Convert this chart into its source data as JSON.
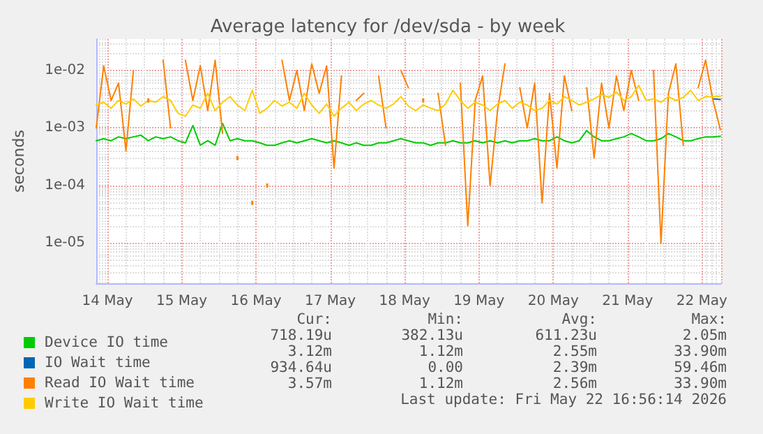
{
  "chart_data": {
    "type": "line",
    "title": "Average latency for /dev/sda - by week",
    "ylabel": "seconds",
    "x": [
      "2026-05-13T20:24",
      "2026-05-13T22:48",
      "2026-05-14T01:12",
      "2026-05-14T03:36",
      "2026-05-14T06:00",
      "2026-05-14T08:24",
      "2026-05-14T10:48",
      "2026-05-14T13:12",
      "2026-05-14T15:36",
      "2026-05-14T18:00",
      "2026-05-14T20:24",
      "2026-05-14T22:48",
      "2026-05-15T01:12",
      "2026-05-15T03:36",
      "2026-05-15T06:00",
      "2026-05-15T08:24",
      "2026-05-15T10:48",
      "2026-05-15T13:12",
      "2026-05-15T15:36",
      "2026-05-15T18:00",
      "2026-05-15T20:24",
      "2026-05-15T22:48",
      "2026-05-16T01:12",
      "2026-05-16T03:36",
      "2026-05-16T06:00",
      "2026-05-16T08:24",
      "2026-05-16T10:48",
      "2026-05-16T13:12",
      "2026-05-16T15:36",
      "2026-05-16T18:00",
      "2026-05-16T20:24",
      "2026-05-16T22:48",
      "2026-05-17T01:12",
      "2026-05-17T03:36",
      "2026-05-17T06:00",
      "2026-05-17T08:24",
      "2026-05-17T10:48",
      "2026-05-17T13:12",
      "2026-05-17T15:36",
      "2026-05-17T18:00",
      "2026-05-17T20:24",
      "2026-05-17T22:48",
      "2026-05-18T01:12",
      "2026-05-18T03:36",
      "2026-05-18T06:00",
      "2026-05-18T08:24",
      "2026-05-18T10:48",
      "2026-05-18T13:12",
      "2026-05-18T15:36",
      "2026-05-18T18:00",
      "2026-05-18T20:24",
      "2026-05-18T22:48",
      "2026-05-19T01:12",
      "2026-05-19T03:36",
      "2026-05-19T06:00",
      "2026-05-19T08:24",
      "2026-05-19T10:48",
      "2026-05-19T13:12",
      "2026-05-19T15:36",
      "2026-05-19T18:00",
      "2026-05-19T20:24",
      "2026-05-19T22:48",
      "2026-05-20T01:12",
      "2026-05-20T03:36",
      "2026-05-20T06:00",
      "2026-05-20T08:24",
      "2026-05-20T10:48",
      "2026-05-20T13:12",
      "2026-05-20T15:36",
      "2026-05-20T18:00",
      "2026-05-20T20:24",
      "2026-05-20T22:48",
      "2026-05-21T01:12",
      "2026-05-21T03:36",
      "2026-05-21T06:00",
      "2026-05-21T08:24",
      "2026-05-21T10:48",
      "2026-05-21T13:12",
      "2026-05-21T15:36",
      "2026-05-21T18:00",
      "2026-05-21T20:24",
      "2026-05-21T22:48",
      "2026-05-22T01:12",
      "2026-05-22T03:36",
      "2026-05-22T06:00"
    ],
    "series": [
      {
        "name": "Device IO time",
        "color": "#00cc00",
        "values": [
          0.0006,
          0.00065,
          0.0006,
          0.0007,
          0.00065,
          0.0007,
          0.00075,
          0.0006,
          0.0007,
          0.00065,
          0.0007,
          0.0006,
          0.00055,
          0.0011,
          0.0005,
          0.0006,
          0.0005,
          0.0012,
          0.0006,
          0.00065,
          0.0006,
          0.0006,
          0.00055,
          0.0005,
          0.0005,
          0.00055,
          0.0006,
          0.00055,
          0.0006,
          0.00065,
          0.0006,
          0.00055,
          0.0006,
          0.00055,
          0.0005,
          0.00055,
          0.0005,
          0.0005,
          0.00055,
          0.00055,
          0.0006,
          0.00065,
          0.0006,
          0.00055,
          0.00055,
          0.0005,
          0.00055,
          0.00055,
          0.0006,
          0.00055,
          0.00055,
          0.0006,
          0.00055,
          0.0006,
          0.00055,
          0.0006,
          0.00055,
          0.0006,
          0.0006,
          0.00065,
          0.0006,
          0.0006,
          0.0007,
          0.0006,
          0.00055,
          0.0006,
          0.0009,
          0.0007,
          0.0006,
          0.0006,
          0.00065,
          0.0007,
          0.0008,
          0.0007,
          0.0006,
          0.0006,
          0.00065,
          0.0008,
          0.0007,
          0.0006,
          0.0006,
          0.00065,
          0.0007,
          0.0007,
          0.00072
        ]
      },
      {
        "name": "IO Wait time",
        "color": "#0066b3",
        "values": [
          null,
          null,
          null,
          null,
          null,
          null,
          null,
          null,
          null,
          null,
          null,
          null,
          null,
          null,
          null,
          null,
          null,
          null,
          null,
          null,
          null,
          null,
          null,
          null,
          null,
          null,
          null,
          null,
          null,
          null,
          null,
          null,
          null,
          null,
          null,
          null,
          null,
          null,
          null,
          null,
          null,
          null,
          null,
          null,
          null,
          null,
          null,
          null,
          null,
          null,
          null,
          null,
          null,
          null,
          null,
          null,
          null,
          null,
          null,
          null,
          null,
          null,
          null,
          null,
          null,
          null,
          null,
          null,
          null,
          null,
          null,
          null,
          null,
          null,
          null,
          null,
          null,
          null,
          null,
          null,
          null,
          null,
          null,
          0.0032,
          0.00312
        ]
      },
      {
        "name": "Read IO Wait time",
        "color": "#ff8000",
        "values": [
          0.001,
          0.012,
          0.003,
          0.006,
          0.0004,
          0.01,
          null,
          0.003,
          null,
          0.015,
          0.001,
          null,
          0.015,
          0.003,
          0.012,
          0.002,
          0.015,
          0.0008,
          null,
          0.0003,
          null,
          5e-05,
          null,
          0.0001,
          null,
          0.015,
          0.003,
          0.01,
          0.002,
          0.013,
          0.004,
          0.012,
          0.0002,
          0.008,
          null,
          0.003,
          0.004,
          null,
          0.008,
          0.001,
          null,
          0.01,
          0.005,
          null,
          0.003,
          null,
          0.004,
          0.0005,
          null,
          0.006,
          2e-05,
          0.003,
          0.008,
          0.0001,
          0.002,
          0.013,
          null,
          0.005,
          0.001,
          0.006,
          5e-05,
          0.004,
          0.0002,
          0.008,
          0.002,
          null,
          0.005,
          0.0003,
          0.006,
          0.001,
          0.008,
          0.002,
          0.01,
          0.003,
          null,
          0.01,
          1e-05,
          0.004,
          0.013,
          0.0005,
          null,
          0.005,
          0.015,
          0.003,
          0.00093
        ]
      },
      {
        "name": "Write IO Wait time",
        "color": "#ffcc00",
        "values": [
          0.0025,
          0.0028,
          0.0022,
          0.003,
          0.0026,
          0.0032,
          0.0024,
          0.003,
          0.0028,
          0.0035,
          0.003,
          0.0018,
          0.0016,
          0.0025,
          0.0022,
          0.004,
          0.002,
          0.0028,
          0.0035,
          0.0025,
          0.002,
          0.0045,
          0.0018,
          0.0022,
          0.003,
          0.0024,
          0.0028,
          0.0022,
          0.004,
          0.0025,
          0.0018,
          0.0026,
          0.0016,
          0.0022,
          0.0028,
          0.002,
          0.0026,
          0.003,
          0.0025,
          0.0022,
          0.0026,
          0.0035,
          0.0024,
          0.002,
          0.0025,
          0.0022,
          0.002,
          0.0026,
          0.0045,
          0.003,
          0.0022,
          0.0028,
          0.0025,
          0.002,
          0.0026,
          0.003,
          0.0022,
          0.0028,
          0.0025,
          0.002,
          0.0022,
          0.003,
          0.0026,
          0.0035,
          0.003,
          0.0025,
          0.0028,
          0.0032,
          0.0038,
          0.0034,
          0.0042,
          0.003,
          0.0035,
          0.0055,
          0.003,
          0.0032,
          0.0028,
          0.0035,
          0.003,
          0.0034,
          0.0045,
          0.003,
          0.0035,
          0.0035,
          0.00357
        ]
      }
    ],
    "log": "y",
    "xlim": [
      "2026-05-13T20:24",
      "2026-05-22T06:14"
    ],
    "xticks": [
      {
        "value": "2026-05-14",
        "label": "14 May"
      },
      {
        "value": "2026-05-15",
        "label": "15 May"
      },
      {
        "value": "2026-05-16",
        "label": "16 May"
      },
      {
        "value": "2026-05-17",
        "label": "17 May"
      },
      {
        "value": "2026-05-18",
        "label": "18 May"
      },
      {
        "value": "2026-05-19",
        "label": "19 May"
      },
      {
        "value": "2026-05-20",
        "label": "20 May"
      },
      {
        "value": "2026-05-21",
        "label": "21 May"
      },
      {
        "value": "2026-05-22",
        "label": "22 May"
      }
    ],
    "ylim": [
      2e-06,
      0.035
    ],
    "yticks": [
      {
        "value": 1e-05,
        "label": "1e-05"
      },
      {
        "value": 0.0001,
        "label": "1e-04"
      },
      {
        "value": 0.001,
        "label": "1e-03"
      },
      {
        "value": 0.01,
        "label": "1e-02"
      }
    ],
    "grid": true,
    "legend": "bottom left",
    "annotations": [
      "Cur:",
      "Min:",
      "Avg:",
      "Max:",
      "718.19u",
      "382.13u",
      "611.23u",
      "2.05m",
      "3.12m",
      "1.12m",
      "2.55m",
      "33.90m",
      "934.64u",
      "0.00",
      "2.39m",
      "59.46m",
      "3.57m",
      "1.12m",
      "2.56m",
      "33.90m",
      "Last update: Fri May 22 16:56:14 2026"
    ]
  }
}
